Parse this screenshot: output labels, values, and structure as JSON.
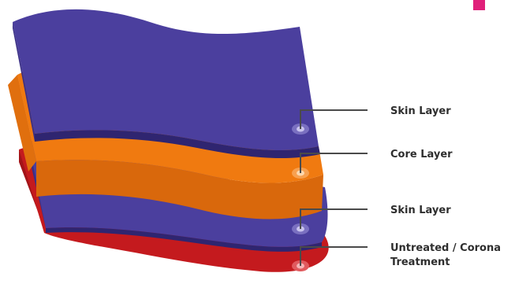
{
  "colors": {
    "skin": "#4b3f9e",
    "skin_edge": "#3a2f85",
    "core": "#f07a10",
    "core_edge": "#d9680c",
    "treatment": "#c41a1e",
    "treatment_edge": "#a31418",
    "accent": "#e0207a",
    "text": "#2e2e2e"
  },
  "layers": [
    {
      "label": "Skin Layer",
      "color": "skin"
    },
    {
      "label": "Core Layer",
      "color": "core"
    },
    {
      "label": "Skin Layer",
      "color": "skin"
    },
    {
      "label_lines": [
        "Untreated / Corona",
        "Treatment"
      ],
      "color": "treatment"
    }
  ]
}
